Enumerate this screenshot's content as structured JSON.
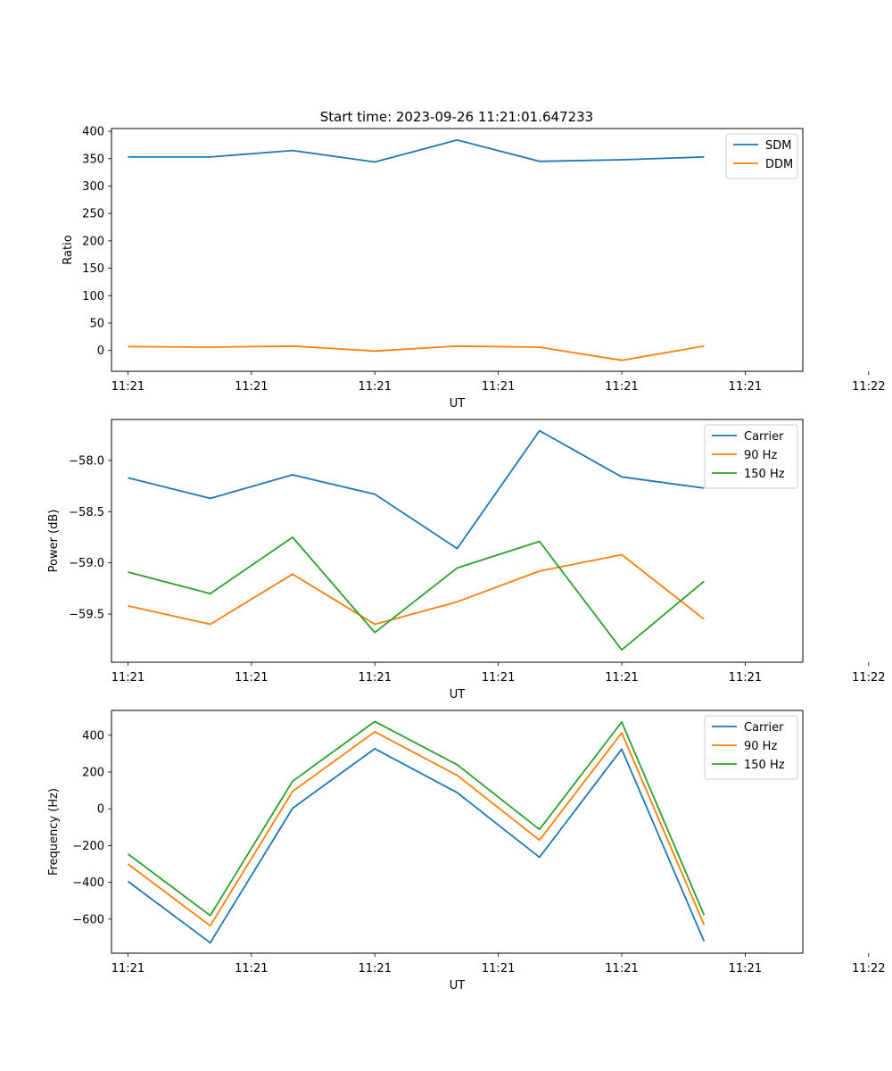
{
  "figure_title": "Start time: 2023-09-26 11:21:01.647233",
  "colors": {
    "blue": "#1f77b4",
    "orange": "#ff7f0e",
    "green": "#2ca02c"
  },
  "chart_data": [
    {
      "type": "line",
      "title": "Start time: 2023-09-26 11:21:01.647233",
      "xlabel": "UT",
      "ylabel": "Ratio",
      "x": [
        1,
        2,
        3,
        4,
        5,
        6,
        7,
        8
      ],
      "xlim": [
        0.8,
        9.2
      ],
      "x_ticks": [
        1,
        2.5,
        4,
        5.5,
        7,
        8.5,
        10
      ],
      "x_tick_labels": [
        "11:21",
        "11:21",
        "11:21",
        "11:21",
        "11:21",
        "11:21",
        "11:22"
      ],
      "ylim": [
        -38,
        405
      ],
      "y_ticks": [
        0,
        50,
        100,
        150,
        200,
        250,
        300,
        350,
        400
      ],
      "y_tick_labels": [
        "0",
        "50",
        "100",
        "150",
        "200",
        "250",
        "300",
        "350",
        "400"
      ],
      "legend_position": "top-right",
      "series": [
        {
          "name": "SDM",
          "color": "#1f77b4",
          "values": [
            353,
            353,
            365,
            344,
            384,
            345,
            348,
            353
          ]
        },
        {
          "name": "DDM",
          "color": "#ff7f0e",
          "values": [
            7,
            6,
            8,
            -1,
            8,
            6,
            -18,
            8
          ]
        }
      ]
    },
    {
      "type": "line",
      "title": "",
      "xlabel": "UT",
      "ylabel": "Power (dB)",
      "x": [
        1,
        2,
        3,
        4,
        5,
        6,
        7,
        8
      ],
      "xlim": [
        0.8,
        9.2
      ],
      "x_ticks": [
        1,
        2.5,
        4,
        5.5,
        7,
        8.5,
        10
      ],
      "x_tick_labels": [
        "11:21",
        "11:21",
        "11:21",
        "11:21",
        "11:21",
        "11:21",
        "11:22"
      ],
      "ylim": [
        -59.97,
        -57.6
      ],
      "y_ticks": [
        -58.0,
        -58.5,
        -59.0,
        -59.5
      ],
      "y_tick_labels": [
        "−58.0",
        "−58.5",
        "−59.0",
        "−59.5"
      ],
      "legend_position": "top-right",
      "series": [
        {
          "name": "Carrier",
          "color": "#1f77b4",
          "values": [
            -58.17,
            -58.37,
            -58.14,
            -58.33,
            -58.86,
            -57.71,
            -58.16,
            -58.27
          ]
        },
        {
          "name": "90 Hz",
          "color": "#ff7f0e",
          "values": [
            -59.42,
            -59.6,
            -59.11,
            -59.6,
            -59.38,
            -59.08,
            -58.92,
            -59.55
          ]
        },
        {
          "name": "150 Hz",
          "color": "#2ca02c",
          "values": [
            -59.09,
            -59.3,
            -58.75,
            -59.68,
            -59.05,
            -58.79,
            -59.85,
            -59.18
          ]
        }
      ]
    },
    {
      "type": "line",
      "title": "",
      "xlabel": "UT",
      "ylabel": "Frequency (Hz)",
      "x": [
        1,
        2,
        3,
        4,
        5,
        6,
        7,
        8
      ],
      "xlim": [
        0.8,
        9.2
      ],
      "x_ticks": [
        1,
        2.5,
        4,
        5.5,
        7,
        8.5,
        10
      ],
      "x_tick_labels": [
        "11:21",
        "11:21",
        "11:21",
        "11:21",
        "11:21",
        "11:21",
        "11:22"
      ],
      "ylim": [
        -785,
        535
      ],
      "y_ticks": [
        400,
        200,
        0,
        -200,
        -400,
        -600
      ],
      "y_tick_labels": [
        "400",
        "200",
        "0",
        "−200",
        "−400",
        "−600"
      ],
      "legend_position": "top-right",
      "series": [
        {
          "name": "Carrier",
          "color": "#1f77b4",
          "values": [
            -395,
            -728,
            3,
            327,
            88,
            -264,
            325,
            -720
          ]
        },
        {
          "name": "90 Hz",
          "color": "#ff7f0e",
          "values": [
            -300,
            -636,
            95,
            419,
            182,
            -170,
            413,
            -630
          ]
        },
        {
          "name": "150 Hz",
          "color": "#2ca02c",
          "values": [
            -246,
            -580,
            150,
            475,
            240,
            -112,
            472,
            -578
          ]
        }
      ]
    }
  ]
}
